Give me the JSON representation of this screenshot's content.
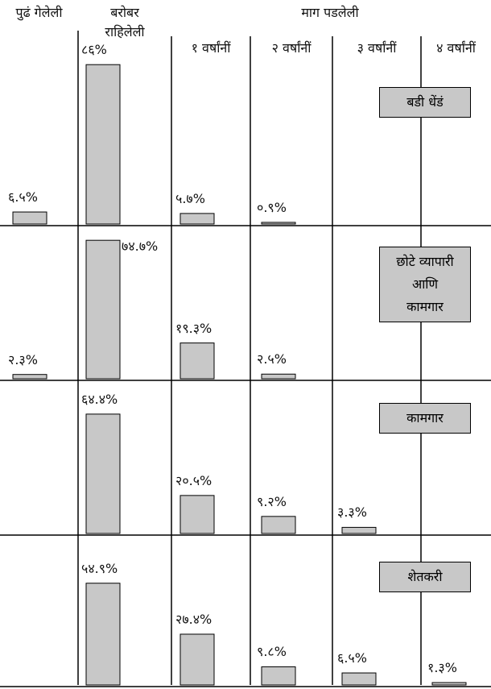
{
  "chart_data": {
    "type": "bar",
    "categories": [
      "पुढं गेलेली",
      "बरोबर\nराहिलेली",
      "१ वर्षांनीं",
      "२ वर्षांनीं",
      "३ वर्षांनीं",
      "४ वर्षांनीं"
    ],
    "group_label": "माग पडलेली",
    "color": "#c8c8c8",
    "series": [
      {
        "name": "बडी धेंडं",
        "values": [
          6.5,
          86,
          5.7,
          0.9,
          null,
          null
        ],
        "value_labels": [
          "६.५%",
          "८६%",
          "५.७%",
          "०.९%",
          null,
          null
        ]
      },
      {
        "name": "छोटे व्यापारी\nआणि\nकामगार",
        "values": [
          2.3,
          74.7,
          19.3,
          2.5,
          null,
          null
        ],
        "value_labels": [
          "२.३%",
          "७४.७%",
          "१९.३%",
          "२.५%",
          null,
          null
        ]
      },
      {
        "name": "कामगार",
        "values": [
          null,
          64.4,
          20.5,
          9.2,
          3.3,
          null
        ],
        "value_labels": [
          null,
          "६४.४%",
          "२०.५%",
          "९.२%",
          "३.३%",
          null
        ]
      },
      {
        "name": "शेतकरी",
        "values": [
          null,
          54.9,
          27.4,
          9.8,
          6.5,
          1.3
        ],
        "value_labels": [
          null,
          "५४.९%",
          "२७.४%",
          "९.८%",
          "६.५%",
          "१.३%"
        ]
      }
    ]
  }
}
